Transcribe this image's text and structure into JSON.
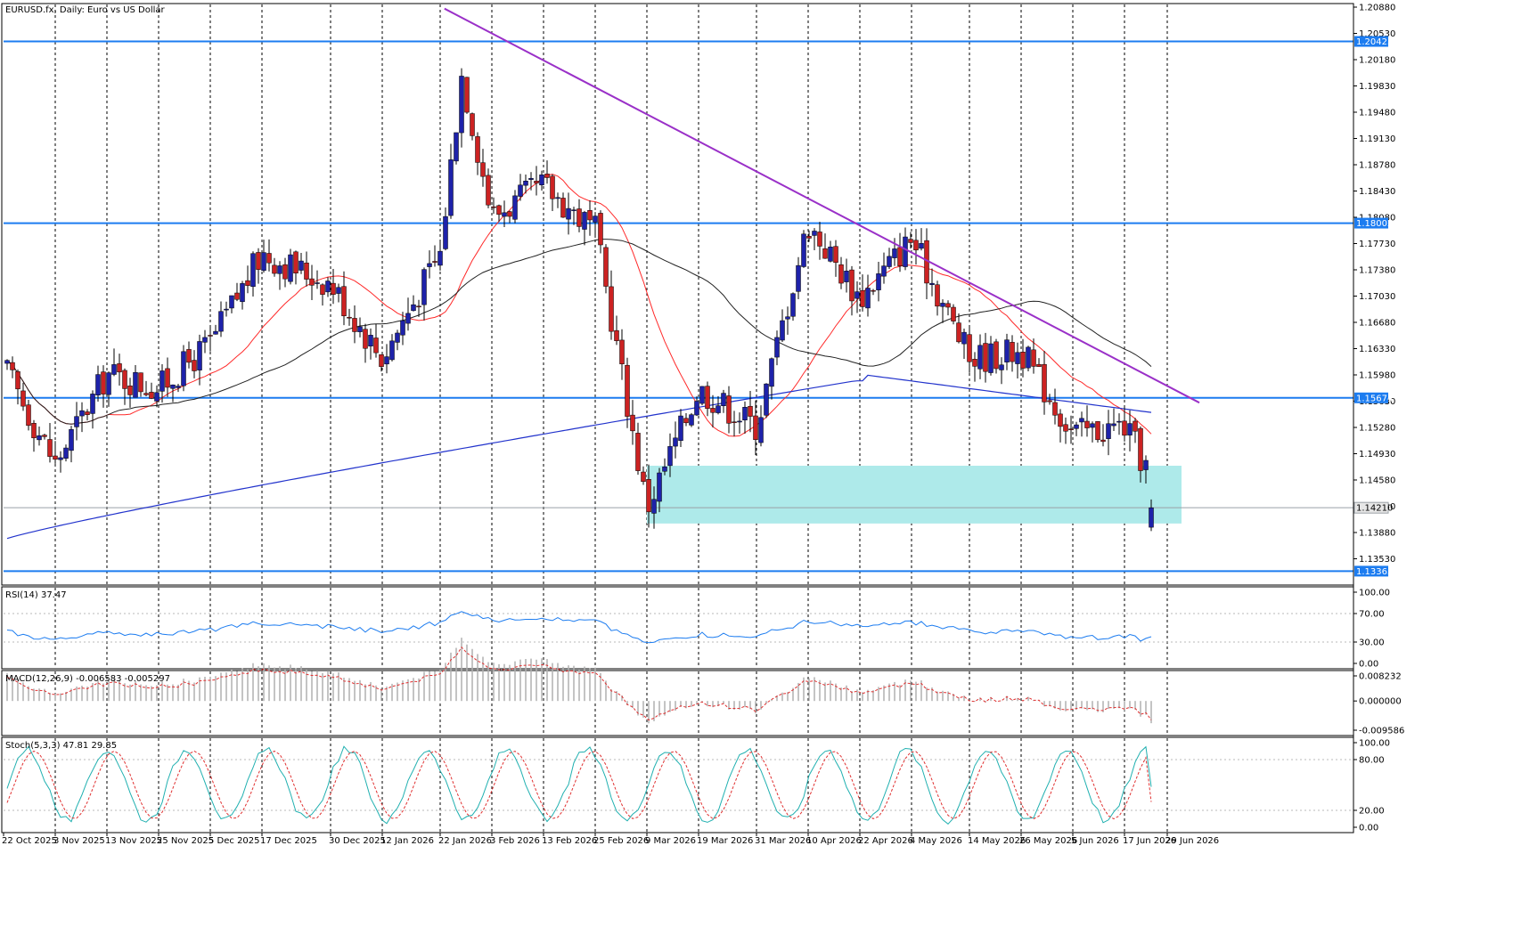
{
  "window": {
    "title": "EURUSD.fx, Daily:  Euro vs US Dollar"
  },
  "colors": {
    "bull_candle": "#1e22aa",
    "bear_candle": "#cc2222",
    "sma20": "#ff2a2a",
    "sma50": "#222222",
    "sma200": "#2233cc",
    "trendline": "#9a30c8",
    "support_lines": "#1c7cf0",
    "zone_fill": "#aeeaea",
    "rsi_line": "#1c7cf0",
    "macd_hist": "#b0b0b0",
    "macd_signal": "#e03030",
    "stoch_main": "#20b0b0",
    "stoch_signal": "#e03030",
    "price_tag_bg": "#1c7cf0",
    "current_tag_bg": "#e6e6e6"
  },
  "main": {
    "price_ticks": [
      "1.20880",
      "1.20530",
      "1.20180",
      "1.19830",
      "1.19480",
      "1.19130",
      "1.18780",
      "1.18430",
      "1.18080",
      "1.17730",
      "1.17380",
      "1.17030",
      "1.16680",
      "1.16330",
      "1.15980",
      "1.15630",
      "1.15280",
      "1.14930",
      "1.14580",
      "1.14230",
      "1.13880",
      "1.13530"
    ],
    "level_tags": [
      {
        "value": 1.20423,
        "label": "1.20423"
      },
      {
        "value": 1.18002,
        "label": "1.18002"
      },
      {
        "value": 1.15674,
        "label": "1.15674"
      },
      {
        "value": 1.13365,
        "label": "1.13365"
      }
    ],
    "current_price": {
      "value": 1.1421,
      "label": "1.14210"
    },
    "zone": {
      "from_date": "9 Mar 2026",
      "to_date": "3 Jul 2026",
      "low": 1.14,
      "high": 1.1477
    },
    "trendline": {
      "from_date": "23 Jan 2026",
      "from": 1.2086,
      "to_date": "8 Jul 2026",
      "to": 1.1561
    }
  },
  "date_axis": {
    "labels": [
      "22 Oct 2025",
      "3 Nov 2025",
      "13 Nov 2025",
      "25 Nov 2025",
      "5 Dec 2025",
      "17 Dec 2025",
      "30 Dec 2025",
      "12 Jan 2026",
      "22 Jan 2026",
      "3 Feb 2026",
      "13 Feb 2026",
      "25 Feb 2026",
      "9 Mar 2026",
      "19 Mar 2026",
      "31 Mar 2026",
      "10 Apr 2026",
      "22 Apr 2026",
      "4 May 2026",
      "14 May 2026",
      "26 May 2026",
      "5 Jun 2026",
      "17 Jun 2026",
      "29 Jun 2026"
    ]
  },
  "rsi": {
    "title": "RSI(14) 37.47",
    "ticks": [
      "100.00",
      "70.00",
      "30.00",
      "0.00"
    ],
    "levels": [
      70,
      30
    ]
  },
  "macd": {
    "title": "MACD(12,26,9) -0.006583 -0.005297",
    "ticks": [
      "0.008232",
      "0.000000",
      "-0.009586"
    ]
  },
  "stoch": {
    "title": "Stoch(5,3,3) 47.81 29.85",
    "ticks": [
      "100.00",
      "80.00",
      "20.00",
      "0.00"
    ],
    "levels": [
      80,
      20
    ]
  },
  "chart_data": {
    "type": "candlestick",
    "title": "EURUSD.fx, Daily:  Euro vs US Dollar",
    "x_range": [
      "22 Oct 2025",
      "29 Jun 2026"
    ],
    "ylim": [
      1.1318,
      1.2088
    ],
    "grid": true,
    "horizontal_levels": [
      1.20423,
      1.18002,
      1.15674,
      1.13365
    ],
    "current_price": 1.1421,
    "overlays": [
      "SMA 20 (red)",
      "SMA 50 (black)",
      "SMA 200 (blue)",
      "descending trendline (purple)",
      "demand zone 1.1400-1.1477 (cyan)"
    ],
    "closes": [
      {
        "date": "22 Oct 2025",
        "close": 1.161
      },
      {
        "date": "3 Nov 2025",
        "close": 1.148
      },
      {
        "date": "13 Nov 2025",
        "close": 1.16
      },
      {
        "date": "25 Nov 2025",
        "close": 1.158
      },
      {
        "date": "5 Dec 2025",
        "close": 1.164
      },
      {
        "date": "17 Dec 2025",
        "close": 1.176
      },
      {
        "date": "30 Dec 2025",
        "close": 1.172
      },
      {
        "date": "12 Jan 2026",
        "close": 1.162
      },
      {
        "date": "22 Jan 2026",
        "close": 1.176
      },
      {
        "date": "27 Jan 2026",
        "close": 1.2
      },
      {
        "date": "3 Feb 2026",
        "close": 1.181
      },
      {
        "date": "13 Feb 2026",
        "close": 1.185
      },
      {
        "date": "25 Feb 2026",
        "close": 1.179
      },
      {
        "date": "9 Mar 2026",
        "close": 1.142
      },
      {
        "date": "19 Mar 2026",
        "close": 1.158
      },
      {
        "date": "31 Mar 2026",
        "close": 1.153
      },
      {
        "date": "10 Apr 2026",
        "close": 1.18
      },
      {
        "date": "22 Apr 2026",
        "close": 1.17
      },
      {
        "date": "4 May 2026",
        "close": 1.178
      },
      {
        "date": "14 May 2026",
        "close": 1.162
      },
      {
        "date": "26 May 2026",
        "close": 1.163
      },
      {
        "date": "5 Jun 2026",
        "close": 1.152
      },
      {
        "date": "17 Jun 2026",
        "close": 1.153
      },
      {
        "date": "29 Jun 2026",
        "close": 1.1421
      }
    ],
    "rsi14_last": 37.47,
    "macd_last": -0.006583,
    "macd_signal_last": -0.005297,
    "stoch_k_last": 47.81,
    "stoch_d_last": 29.85
  }
}
